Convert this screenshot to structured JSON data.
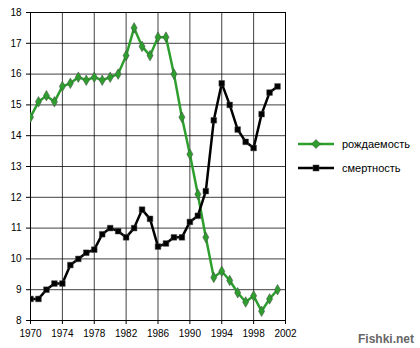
{
  "chart_data": {
    "type": "line",
    "x": [
      1970,
      1971,
      1972,
      1973,
      1974,
      1975,
      1976,
      1977,
      1978,
      1979,
      1980,
      1981,
      1982,
      1983,
      1984,
      1985,
      1986,
      1987,
      1988,
      1989,
      1990,
      1991,
      1992,
      1993,
      1994,
      1995,
      1996,
      1997,
      1998,
      1999,
      2000,
      2001
    ],
    "series": [
      {
        "name": "рождаемость",
        "color": "#2e9e2e",
        "marker": "diamond",
        "values": [
          14.6,
          15.1,
          15.3,
          15.1,
          15.6,
          15.7,
          15.9,
          15.8,
          15.9,
          15.8,
          15.9,
          16.0,
          16.6,
          17.5,
          16.9,
          16.6,
          17.2,
          17.2,
          16.0,
          14.6,
          13.4,
          12.1,
          10.7,
          9.4,
          9.6,
          9.3,
          8.9,
          8.6,
          8.8,
          8.3,
          8.7,
          9.0
        ]
      },
      {
        "name": "смертность",
        "color": "#000000",
        "marker": "square",
        "values": [
          8.7,
          8.7,
          9.0,
          9.2,
          9.2,
          9.8,
          10.0,
          10.2,
          10.3,
          10.8,
          11.0,
          10.9,
          10.7,
          11.0,
          11.6,
          11.3,
          10.4,
          10.5,
          10.7,
          10.7,
          11.2,
          11.4,
          12.2,
          14.5,
          15.7,
          15.0,
          14.2,
          13.8,
          13.6,
          14.7,
          15.4,
          15.6
        ]
      }
    ],
    "xlim": [
      1970,
      2002
    ],
    "xticks": [
      1970,
      1974,
      1978,
      1982,
      1986,
      1990,
      1994,
      1998,
      2002
    ],
    "ylim": [
      8,
      18
    ],
    "yticks": [
      8,
      9,
      10,
      11,
      12,
      13,
      14,
      15,
      16,
      17,
      18
    ],
    "grid": true,
    "legend": "right",
    "annotations": [
      "Fishki.net"
    ]
  }
}
